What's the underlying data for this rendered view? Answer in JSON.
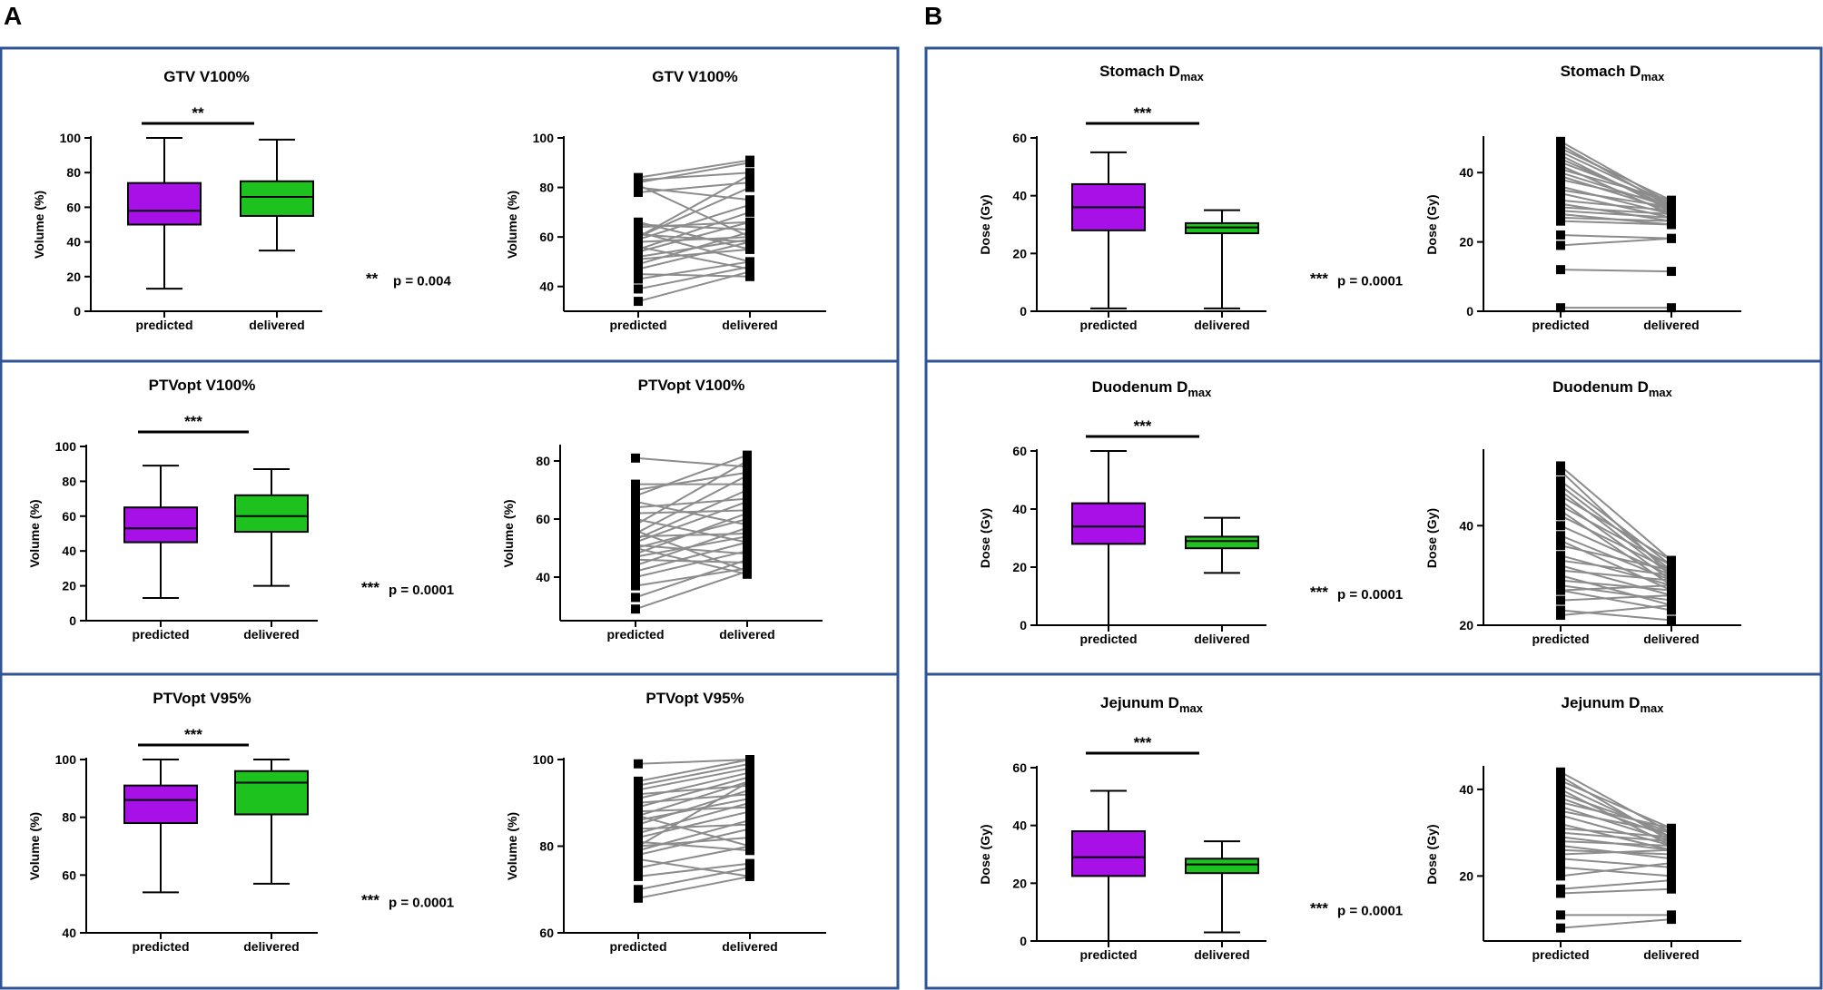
{
  "panel_labels": [
    "A",
    "B"
  ],
  "colors": {
    "predicted": "#a711e8",
    "delivered": "#1ec21e",
    "border": "#2f5496",
    "pair_line": "#8c8c8c"
  },
  "chart_data": [
    {
      "type": "box",
      "panel": "A",
      "title": "GTV V100%",
      "ylabel": "Volume (%)",
      "categories": [
        "predicted",
        "delivered"
      ],
      "ylim": [
        0,
        100
      ],
      "yticks": [
        0,
        20,
        40,
        60,
        80,
        100
      ],
      "boxes": [
        {
          "name": "predicted",
          "min": 13,
          "q1": 50,
          "median": 58,
          "q3": 74,
          "max": 100
        },
        {
          "name": "delivered",
          "min": 35,
          "q1": 55,
          "median": 66,
          "q3": 75,
          "max": 99
        }
      ],
      "significance": "**",
      "test_stars": "**",
      "p_text": "p = 0.004"
    },
    {
      "type": "paired",
      "panel": "A",
      "title": "GTV V100%",
      "ylabel": "Volume (%)",
      "categories": [
        "predicted",
        "delivered"
      ],
      "ylim": [
        30,
        100
      ],
      "yticks": [
        40,
        60,
        80,
        100
      ],
      "pairs": [
        [
          34,
          46
        ],
        [
          39,
          48
        ],
        [
          43,
          50
        ],
        [
          45,
          44
        ],
        [
          47,
          58
        ],
        [
          49,
          62
        ],
        [
          51,
          55
        ],
        [
          52,
          59
        ],
        [
          54,
          66
        ],
        [
          55,
          70
        ],
        [
          56,
          47
        ],
        [
          58,
          60
        ],
        [
          59,
          73
        ],
        [
          60,
          80
        ],
        [
          61,
          58
        ],
        [
          62,
          50
        ],
        [
          64,
          66
        ],
        [
          65,
          63
        ],
        [
          66,
          55
        ],
        [
          60,
          85
        ],
        [
          81,
          60
        ],
        [
          82,
          90
        ],
        [
          83,
          86
        ],
        [
          84,
          91
        ],
        [
          80,
          75
        ],
        [
          78,
          82
        ]
      ]
    },
    {
      "type": "box",
      "panel": "A",
      "title": "PTVopt V100%",
      "ylabel": "Volume (%)",
      "categories": [
        "predicted",
        "delivered"
      ],
      "ylim": [
        0,
        100
      ],
      "yticks": [
        0,
        20,
        40,
        60,
        80,
        100
      ],
      "boxes": [
        {
          "name": "predicted",
          "min": 13,
          "q1": 45,
          "median": 53,
          "q3": 65,
          "max": 89
        },
        {
          "name": "delivered",
          "min": 20,
          "q1": 51,
          "median": 60,
          "q3": 72,
          "max": 87
        }
      ],
      "significance": "***",
      "test_stars": "***",
      "p_text": "p = 0.0001"
    },
    {
      "type": "paired",
      "panel": "A",
      "title": "PTVopt V100%",
      "ylabel": "Volume (%)",
      "categories": [
        "predicted",
        "delivered"
      ],
      "ylim": [
        25,
        85
      ],
      "yticks": [
        40,
        60,
        80
      ],
      "pairs": [
        [
          29,
          42
        ],
        [
          33,
          46
        ],
        [
          37,
          43
        ],
        [
          40,
          49
        ],
        [
          42,
          52
        ],
        [
          44,
          57
        ],
        [
          46,
          45
        ],
        [
          48,
          62
        ],
        [
          50,
          60
        ],
        [
          51,
          48
        ],
        [
          52,
          66
        ],
        [
          53,
          70
        ],
        [
          54,
          55
        ],
        [
          55,
          75
        ],
        [
          56,
          42
        ],
        [
          58,
          80
        ],
        [
          60,
          52
        ],
        [
          62,
          63
        ],
        [
          64,
          67
        ],
        [
          66,
          58
        ],
        [
          68,
          82
        ],
        [
          70,
          76
        ],
        [
          72,
          72
        ],
        [
          81,
          78
        ],
        [
          50,
          41
        ],
        [
          47,
          54
        ]
      ]
    },
    {
      "type": "box",
      "panel": "A",
      "title": "PTVopt V95%",
      "ylabel": "Volume (%)",
      "categories": [
        "predicted",
        "delivered"
      ],
      "ylim": [
        40,
        100
      ],
      "yticks": [
        40,
        60,
        80,
        100
      ],
      "boxes": [
        {
          "name": "predicted",
          "min": 54,
          "q1": 78,
          "median": 86,
          "q3": 91,
          "max": 100
        },
        {
          "name": "delivered",
          "min": 57,
          "q1": 81,
          "median": 92,
          "q3": 96,
          "max": 100
        }
      ],
      "significance": "***",
      "test_stars": "***",
      "p_text": "p = 0.0001"
    },
    {
      "type": "paired",
      "panel": "A",
      "title": "PTVopt V95%",
      "ylabel": "Volume (%)",
      "categories": [
        "predicted",
        "delivered"
      ],
      "ylim": [
        60,
        100
      ],
      "yticks": [
        60,
        80,
        100
      ],
      "pairs": [
        [
          68,
          73
        ],
        [
          70,
          75
        ],
        [
          73,
          76
        ],
        [
          75,
          80
        ],
        [
          77,
          73
        ],
        [
          78,
          84
        ],
        [
          79,
          86
        ],
        [
          80,
          82
        ],
        [
          81,
          79
        ],
        [
          82,
          88
        ],
        [
          83,
          90
        ],
        [
          84,
          85
        ],
        [
          85,
          93
        ],
        [
          86,
          91
        ],
        [
          87,
          95
        ],
        [
          88,
          89
        ],
        [
          89,
          96
        ],
        [
          90,
          92
        ],
        [
          91,
          97
        ],
        [
          92,
          94
        ],
        [
          93,
          98
        ],
        [
          94,
          99
        ],
        [
          95,
          100
        ],
        [
          99,
          100
        ],
        [
          87,
          80
        ],
        [
          80,
          95
        ]
      ]
    },
    {
      "type": "box",
      "panel": "B",
      "title": "Stomach D",
      "title_sub": "max",
      "ylabel": "Dose (Gy)",
      "categories": [
        "predicted",
        "delivered"
      ],
      "ylim": [
        0,
        60
      ],
      "yticks": [
        0,
        20,
        40,
        60
      ],
      "boxes": [
        {
          "name": "predicted",
          "min": 1,
          "q1": 28,
          "median": 36,
          "q3": 44,
          "max": 55
        },
        {
          "name": "delivered",
          "min": 1,
          "q1": 27,
          "median": 29,
          "q3": 30.5,
          "max": 35
        }
      ],
      "significance": "***",
      "test_stars": "***",
      "p_text": "p = 0.0001"
    },
    {
      "type": "paired",
      "panel": "B",
      "title": "Stomach D",
      "title_sub": "max",
      "ylabel": "Dose (Gy)",
      "categories": [
        "predicted",
        "delivered"
      ],
      "ylim": [
        0,
        50
      ],
      "yticks": [
        0,
        20,
        40
      ],
      "pairs": [
        [
          1,
          1
        ],
        [
          12,
          11.5
        ],
        [
          19,
          21
        ],
        [
          22,
          21
        ],
        [
          26,
          25
        ],
        [
          27,
          26
        ],
        [
          29,
          27
        ],
        [
          30,
          28
        ],
        [
          31,
          26
        ],
        [
          32,
          29
        ],
        [
          34,
          27
        ],
        [
          35,
          30
        ],
        [
          36,
          28
        ],
        [
          38,
          31
        ],
        [
          39,
          29
        ],
        [
          40,
          30
        ],
        [
          41,
          32
        ],
        [
          42,
          28
        ],
        [
          43,
          31
        ],
        [
          44,
          30
        ],
        [
          45,
          29
        ],
        [
          46,
          31
        ],
        [
          47,
          32
        ],
        [
          48,
          30
        ],
        [
          49,
          31
        ],
        [
          28,
          25
        ]
      ]
    },
    {
      "type": "box",
      "panel": "B",
      "title": "Duodenum D",
      "title_sub": "max",
      "ylabel": "Dose (Gy)",
      "categories": [
        "predicted",
        "delivered"
      ],
      "ylim": [
        0,
        60
      ],
      "yticks": [
        0,
        20,
        40,
        60
      ],
      "boxes": [
        {
          "name": "predicted",
          "min": 0,
          "q1": 28,
          "median": 34,
          "q3": 42,
          "max": 60
        },
        {
          "name": "delivered",
          "min": 18,
          "q1": 26.5,
          "median": 29,
          "q3": 30.5,
          "max": 37
        }
      ],
      "significance": "***",
      "test_stars": "***",
      "p_text": "p = 0.0001"
    },
    {
      "type": "paired",
      "panel": "B",
      "title": "Duodenum D",
      "title_sub": "max",
      "ylabel": "Dose (Gy)",
      "categories": [
        "predicted",
        "delivered"
      ],
      "ylim": [
        20,
        55
      ],
      "yticks": [
        20,
        40
      ],
      "pairs": [
        [
          22,
          24
        ],
        [
          23,
          21
        ],
        [
          25,
          26
        ],
        [
          27,
          28
        ],
        [
          28,
          25
        ],
        [
          29,
          27
        ],
        [
          30,
          24
        ],
        [
          31,
          29
        ],
        [
          32,
          26
        ],
        [
          33,
          30
        ],
        [
          34,
          28
        ],
        [
          36,
          31
        ],
        [
          37,
          27
        ],
        [
          38,
          29
        ],
        [
          40,
          30
        ],
        [
          42,
          31
        ],
        [
          43,
          28
        ],
        [
          44,
          32
        ],
        [
          45,
          29
        ],
        [
          46,
          33
        ],
        [
          47,
          30
        ],
        [
          48,
          31
        ],
        [
          49,
          32
        ],
        [
          51,
          30
        ],
        [
          52,
          33
        ],
        [
          27,
          23
        ]
      ]
    },
    {
      "type": "box",
      "panel": "B",
      "title": "Jejunum D",
      "title_sub": "max",
      "ylabel": "Dose (Gy)",
      "categories": [
        "predicted",
        "delivered"
      ],
      "ylim": [
        0,
        60
      ],
      "yticks": [
        0,
        20,
        40,
        60
      ],
      "boxes": [
        {
          "name": "predicted",
          "min": 0,
          "q1": 22.5,
          "median": 29,
          "q3": 38,
          "max": 52
        },
        {
          "name": "delivered",
          "min": 3,
          "q1": 23.5,
          "median": 26.5,
          "q3": 28.5,
          "max": 34.5
        }
      ],
      "significance": "***",
      "test_stars": "***",
      "p_text": "p = 0.0001"
    },
    {
      "type": "paired",
      "panel": "B",
      "title": "Jejunum D",
      "title_sub": "max",
      "ylabel": "Dose (Gy)",
      "categories": [
        "predicted",
        "delivered"
      ],
      "ylim": [
        5,
        45
      ],
      "yticks": [
        20,
        40
      ],
      "pairs": [
        [
          8,
          10
        ],
        [
          11,
          11
        ],
        [
          16,
          17
        ],
        [
          17,
          19
        ],
        [
          20,
          23
        ],
        [
          22,
          20
        ],
        [
          24,
          22
        ],
        [
          26,
          25
        ],
        [
          27,
          24
        ],
        [
          28,
          27
        ],
        [
          29,
          26
        ],
        [
          30,
          28
        ],
        [
          31,
          29
        ],
        [
          32,
          26
        ],
        [
          34,
          27
        ],
        [
          35,
          30
        ],
        [
          36,
          28
        ],
        [
          37,
          31
        ],
        [
          38,
          29
        ],
        [
          39,
          30
        ],
        [
          40,
          27
        ],
        [
          41,
          29
        ],
        [
          42,
          31
        ],
        [
          43,
          28
        ],
        [
          44,
          30
        ],
        [
          25,
          26
        ]
      ]
    }
  ]
}
